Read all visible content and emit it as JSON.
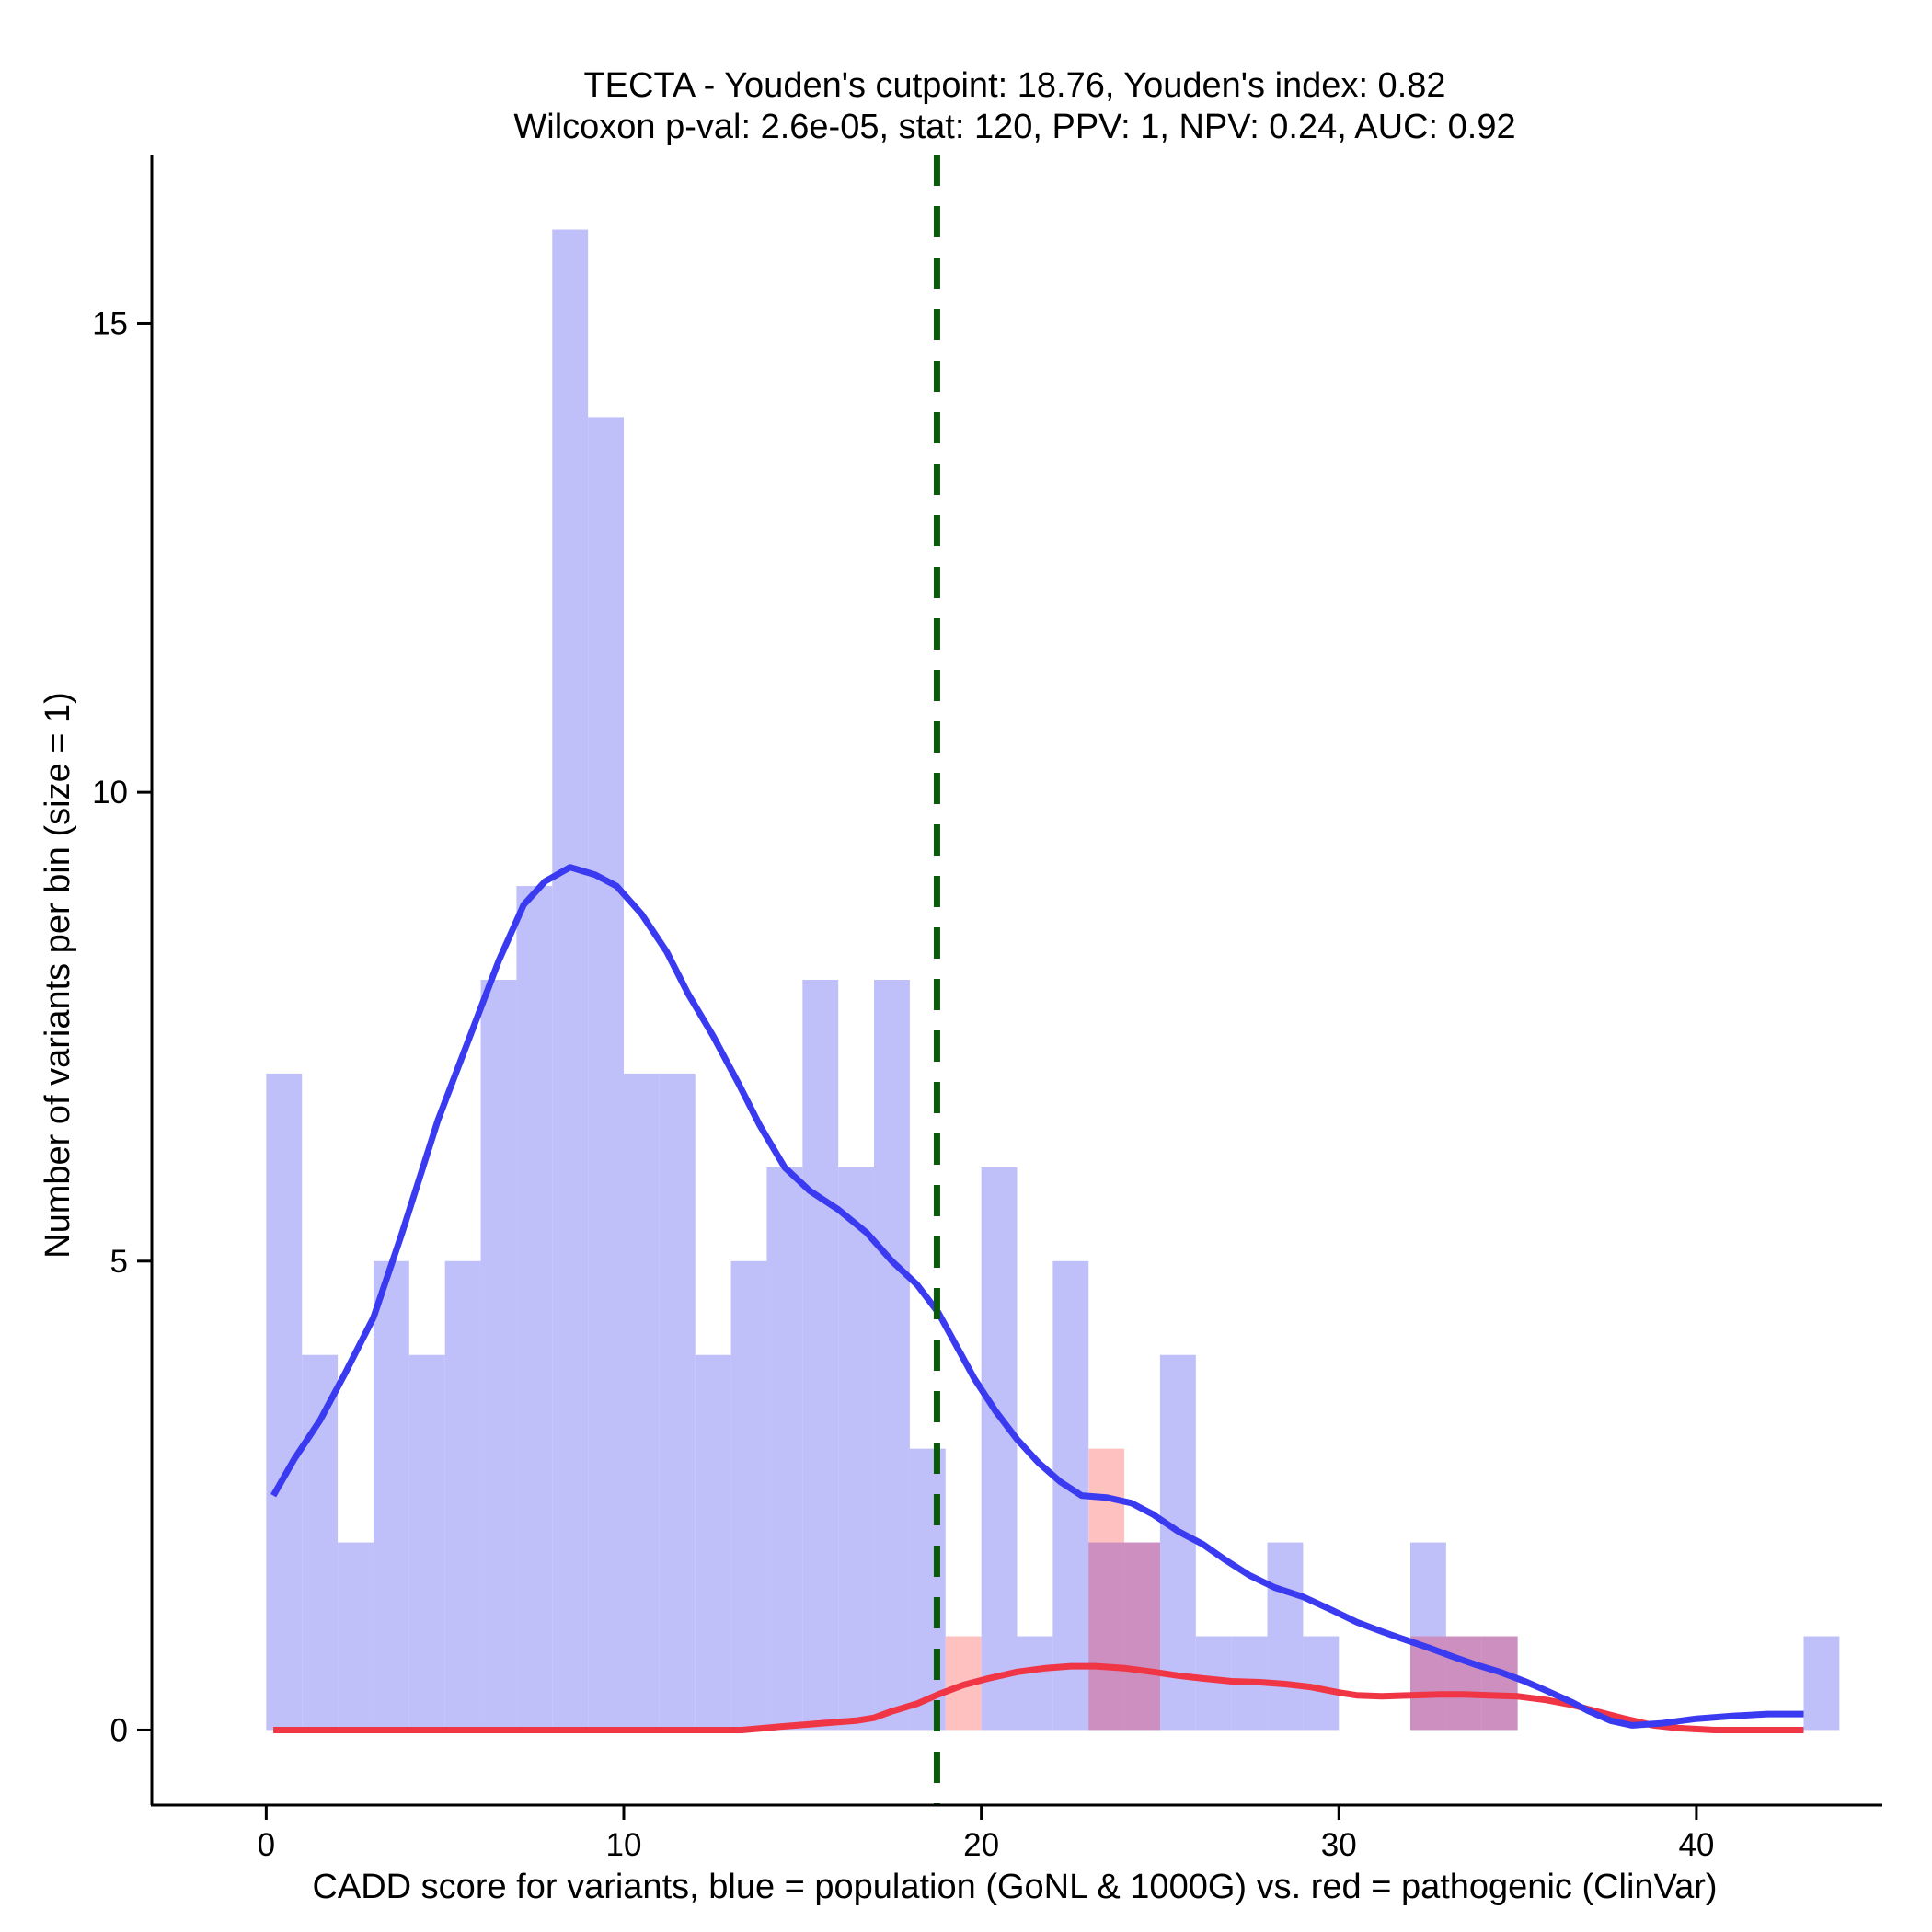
{
  "chart_data": {
    "type": "histogram",
    "title_line1": "TECTA - Youden's cutpoint: 18.76, Youden's index: 0.82",
    "title_line2": "Wilcoxon p-val: 2.6e-05, stat: 120, PPV: 1, NPV: 0.24, AUC: 0.92",
    "xlabel": "CADD score for variants, blue = population (GoNL & 1000G) vs. red = pathogenic (ClinVar)",
    "ylabel": "Number of variants per bin (size = 1)",
    "xlim": [
      -3.2,
      45.2
    ],
    "ylim": [
      -0.8,
      16.8
    ],
    "xticks": [
      0,
      10,
      20,
      30,
      40
    ],
    "xtick_labels": [
      "0",
      "10",
      "20",
      "30",
      "40"
    ],
    "yticks": [
      0,
      5,
      10,
      15
    ],
    "ytick_labels": [
      "0",
      "5",
      "10",
      "15"
    ],
    "bin_width": 1,
    "cutpoint": 18.76,
    "colors": {
      "population_bar": "#bfbffa",
      "pathogenic_bar": "#ffc0c0",
      "overlap_bar": "#cc8fbf",
      "population_line": "#3a3af0",
      "pathogenic_line": "#f03545",
      "cutpoint_line": "#0a5a0a"
    },
    "series": [
      {
        "name": "population (GoNL & 1000G)",
        "bins": [
          {
            "start": 0,
            "count": 7
          },
          {
            "start": 1,
            "count": 4
          },
          {
            "start": 2,
            "count": 2
          },
          {
            "start": 3,
            "count": 5
          },
          {
            "start": 4,
            "count": 4
          },
          {
            "start": 5,
            "count": 5
          },
          {
            "start": 6,
            "count": 8
          },
          {
            "start": 7,
            "count": 9
          },
          {
            "start": 8,
            "count": 16
          },
          {
            "start": 9,
            "count": 14
          },
          {
            "start": 10,
            "count": 7
          },
          {
            "start": 11,
            "count": 7
          },
          {
            "start": 12,
            "count": 4
          },
          {
            "start": 13,
            "count": 5
          },
          {
            "start": 14,
            "count": 6
          },
          {
            "start": 15,
            "count": 8
          },
          {
            "start": 16,
            "count": 6
          },
          {
            "start": 17,
            "count": 8
          },
          {
            "start": 18,
            "count": 3
          },
          {
            "start": 20,
            "count": 6
          },
          {
            "start": 21,
            "count": 1
          },
          {
            "start": 22,
            "count": 5
          },
          {
            "start": 23,
            "count": 2
          },
          {
            "start": 24,
            "count": 2
          },
          {
            "start": 25,
            "count": 4
          },
          {
            "start": 26,
            "count": 1
          },
          {
            "start": 27,
            "count": 1
          },
          {
            "start": 28,
            "count": 2
          },
          {
            "start": 29,
            "count": 1
          },
          {
            "start": 32,
            "count": 2
          },
          {
            "start": 33,
            "count": 1
          },
          {
            "start": 34,
            "count": 1
          },
          {
            "start": 43,
            "count": 1
          }
        ],
        "density_curve": [
          [
            0.2,
            2.5
          ],
          [
            0.8,
            2.9
          ],
          [
            1.5,
            3.3
          ],
          [
            2.2,
            3.8
          ],
          [
            3.0,
            4.4
          ],
          [
            3.8,
            5.3
          ],
          [
            4.8,
            6.5
          ],
          [
            5.8,
            7.5
          ],
          [
            6.5,
            8.2
          ],
          [
            7.2,
            8.8
          ],
          [
            7.8,
            9.05
          ],
          [
            8.5,
            9.2
          ],
          [
            9.2,
            9.12
          ],
          [
            9.8,
            9.0
          ],
          [
            10.5,
            8.7
          ],
          [
            11.2,
            8.3
          ],
          [
            11.8,
            7.85
          ],
          [
            12.5,
            7.4
          ],
          [
            13.2,
            6.9
          ],
          [
            13.8,
            6.45
          ],
          [
            14.5,
            6.0
          ],
          [
            15.2,
            5.75
          ],
          [
            16.0,
            5.55
          ],
          [
            16.8,
            5.3
          ],
          [
            17.5,
            5.0
          ],
          [
            18.2,
            4.75
          ],
          [
            18.8,
            4.45
          ],
          [
            19.3,
            4.1
          ],
          [
            19.8,
            3.75
          ],
          [
            20.4,
            3.4
          ],
          [
            21.0,
            3.1
          ],
          [
            21.6,
            2.85
          ],
          [
            22.2,
            2.65
          ],
          [
            22.8,
            2.5
          ],
          [
            23.5,
            2.48
          ],
          [
            24.2,
            2.42
          ],
          [
            24.8,
            2.3
          ],
          [
            25.5,
            2.12
          ],
          [
            26.2,
            1.98
          ],
          [
            26.8,
            1.82
          ],
          [
            27.5,
            1.65
          ],
          [
            28.2,
            1.52
          ],
          [
            29.0,
            1.42
          ],
          [
            29.8,
            1.28
          ],
          [
            30.5,
            1.15
          ],
          [
            31.2,
            1.05
          ],
          [
            31.8,
            0.97
          ],
          [
            32.5,
            0.88
          ],
          [
            33.2,
            0.78
          ],
          [
            33.8,
            0.7
          ],
          [
            34.5,
            0.62
          ],
          [
            35.2,
            0.52
          ],
          [
            35.8,
            0.42
          ],
          [
            36.5,
            0.3
          ],
          [
            37.0,
            0.2
          ],
          [
            37.6,
            0.1
          ],
          [
            38.2,
            0.05
          ],
          [
            39.0,
            0.07
          ],
          [
            40.0,
            0.12
          ],
          [
            41.0,
            0.15
          ],
          [
            42.0,
            0.17
          ],
          [
            43.0,
            0.17
          ]
        ]
      },
      {
        "name": "pathogenic (ClinVar)",
        "bins": [
          {
            "start": 19,
            "count": 1
          },
          {
            "start": 23,
            "count": 3
          },
          {
            "start": 24,
            "count": 2
          },
          {
            "start": 32,
            "count": 1
          },
          {
            "start": 33,
            "count": 1
          },
          {
            "start": 34,
            "count": 1
          }
        ],
        "density_curve": [
          [
            0.2,
            0.0
          ],
          [
            5.0,
            0.0
          ],
          [
            10.0,
            0.0
          ],
          [
            13.3,
            0.0
          ],
          [
            14.5,
            0.04
          ],
          [
            15.5,
            0.07
          ],
          [
            16.5,
            0.1
          ],
          [
            17.0,
            0.13
          ],
          [
            17.5,
            0.2
          ],
          [
            18.2,
            0.28
          ],
          [
            18.8,
            0.38
          ],
          [
            19.5,
            0.48
          ],
          [
            20.2,
            0.55
          ],
          [
            21.0,
            0.62
          ],
          [
            21.8,
            0.66
          ],
          [
            22.5,
            0.68
          ],
          [
            23.2,
            0.68
          ],
          [
            24.0,
            0.66
          ],
          [
            24.8,
            0.62
          ],
          [
            25.5,
            0.58
          ],
          [
            26.2,
            0.55
          ],
          [
            27.0,
            0.52
          ],
          [
            27.8,
            0.51
          ],
          [
            28.5,
            0.49
          ],
          [
            29.2,
            0.46
          ],
          [
            30.0,
            0.4
          ],
          [
            30.5,
            0.37
          ],
          [
            31.2,
            0.36
          ],
          [
            32.0,
            0.37
          ],
          [
            32.8,
            0.38
          ],
          [
            33.5,
            0.38
          ],
          [
            34.2,
            0.37
          ],
          [
            35.0,
            0.36
          ],
          [
            35.8,
            0.32
          ],
          [
            36.5,
            0.27
          ],
          [
            37.2,
            0.2
          ],
          [
            38.0,
            0.12
          ],
          [
            38.8,
            0.05
          ],
          [
            39.5,
            0.02
          ],
          [
            40.5,
            0.0
          ],
          [
            41.5,
            0.0
          ],
          [
            43.0,
            0.0
          ]
        ]
      }
    ]
  }
}
